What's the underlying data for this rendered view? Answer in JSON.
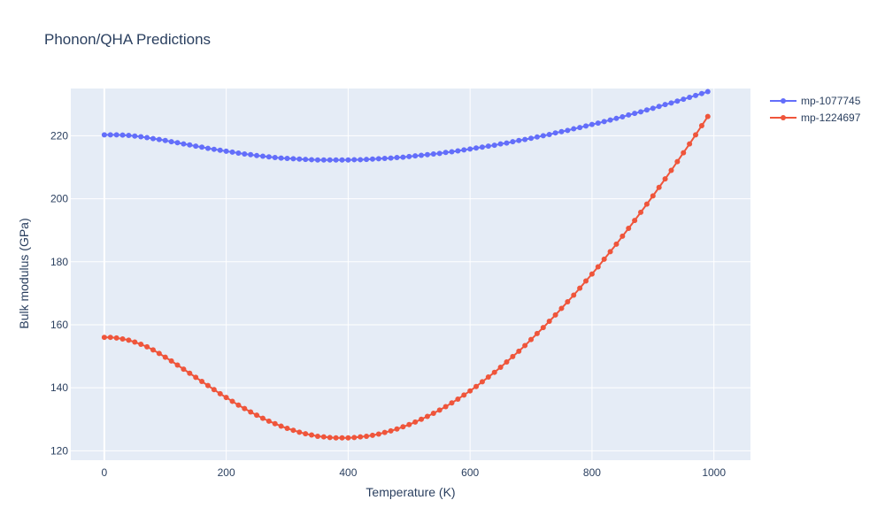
{
  "chart_data": {
    "type": "line",
    "title": "Phonon/QHA Predictions",
    "xlabel": "Temperature (K)",
    "ylabel": "Bulk modulus (GPa)",
    "xlim": [
      -55,
      1060
    ],
    "ylim": [
      117,
      235
    ],
    "xticks": [
      0,
      200,
      400,
      600,
      800,
      1000
    ],
    "yticks": [
      120,
      140,
      160,
      180,
      200,
      220
    ],
    "grid": true,
    "legend_position": "top-right",
    "markers": true,
    "series": [
      {
        "name": "mp-1077745",
        "color": "#636efa",
        "x": [
          0,
          10,
          20,
          30,
          40,
          50,
          60,
          70,
          80,
          90,
          100,
          110,
          120,
          130,
          140,
          150,
          160,
          170,
          180,
          190,
          200,
          210,
          220,
          230,
          240,
          250,
          260,
          270,
          280,
          290,
          300,
          310,
          320,
          330,
          340,
          350,
          360,
          370,
          380,
          390,
          400,
          410,
          420,
          430,
          440,
          450,
          460,
          470,
          480,
          490,
          500,
          510,
          520,
          530,
          540,
          550,
          560,
          570,
          580,
          590,
          600,
          610,
          620,
          630,
          640,
          650,
          660,
          670,
          680,
          690,
          700,
          710,
          720,
          730,
          740,
          750,
          760,
          770,
          780,
          790,
          800,
          810,
          820,
          830,
          840,
          850,
          860,
          870,
          880,
          890,
          900,
          910,
          920,
          930,
          940,
          950,
          960,
          970,
          980,
          990
        ],
        "y": [
          220.3,
          220.3,
          220.3,
          220.2,
          220.1,
          219.9,
          219.7,
          219.4,
          219.1,
          218.8,
          218.5,
          218.1,
          217.8,
          217.4,
          217.1,
          216.7,
          216.4,
          216.0,
          215.7,
          215.4,
          215.1,
          214.8,
          214.5,
          214.2,
          214.0,
          213.7,
          213.5,
          213.3,
          213.1,
          212.9,
          212.8,
          212.7,
          212.6,
          212.5,
          212.4,
          212.3,
          212.3,
          212.3,
          212.3,
          212.3,
          212.3,
          212.4,
          212.4,
          212.5,
          212.6,
          212.7,
          212.8,
          212.9,
          213.1,
          213.2,
          213.4,
          213.6,
          213.8,
          214.0,
          214.2,
          214.4,
          214.7,
          214.9,
          215.2,
          215.5,
          215.8,
          216.1,
          216.4,
          216.7,
          217.0,
          217.4,
          217.7,
          218.1,
          218.5,
          218.8,
          219.2,
          219.6,
          220.0,
          220.4,
          220.9,
          221.3,
          221.7,
          222.2,
          222.6,
          223.1,
          223.6,
          224.0,
          224.5,
          225.0,
          225.5,
          226.0,
          226.6,
          227.1,
          227.6,
          228.2,
          228.7,
          229.3,
          229.9,
          230.4,
          231.0,
          231.6,
          232.2,
          232.8,
          233.4,
          234.0
        ]
      },
      {
        "name": "mp-1224697",
        "color": "#ef553b",
        "x": [
          0,
          10,
          20,
          30,
          40,
          50,
          60,
          70,
          80,
          90,
          100,
          110,
          120,
          130,
          140,
          150,
          160,
          170,
          180,
          190,
          200,
          210,
          220,
          230,
          240,
          250,
          260,
          270,
          280,
          290,
          300,
          310,
          320,
          330,
          340,
          350,
          360,
          370,
          380,
          390,
          400,
          410,
          420,
          430,
          440,
          450,
          460,
          470,
          480,
          490,
          500,
          510,
          520,
          530,
          540,
          550,
          560,
          570,
          580,
          590,
          600,
          610,
          620,
          630,
          640,
          650,
          660,
          670,
          680,
          690,
          700,
          710,
          720,
          730,
          740,
          750,
          760,
          770,
          780,
          790,
          800,
          810,
          820,
          830,
          840,
          850,
          860,
          870,
          880,
          890,
          900,
          910,
          920,
          930,
          940,
          950,
          960,
          970,
          980,
          990
        ],
        "y": [
          156.0,
          156.0,
          155.8,
          155.5,
          155.1,
          154.5,
          153.8,
          153.0,
          152.0,
          150.9,
          149.7,
          148.5,
          147.2,
          145.9,
          144.6,
          143.3,
          142.0,
          140.7,
          139.4,
          138.1,
          136.9,
          135.7,
          134.5,
          133.4,
          132.3,
          131.3,
          130.3,
          129.4,
          128.6,
          127.8,
          127.1,
          126.5,
          125.9,
          125.4,
          125.0,
          124.6,
          124.4,
          124.2,
          124.1,
          124.1,
          124.1,
          124.2,
          124.4,
          124.6,
          124.9,
          125.3,
          125.8,
          126.3,
          126.9,
          127.6,
          128.3,
          129.1,
          130.0,
          130.9,
          131.9,
          132.9,
          134.0,
          135.2,
          136.4,
          137.7,
          139.0,
          140.4,
          141.9,
          143.4,
          144.9,
          146.5,
          148.2,
          149.9,
          151.6,
          153.4,
          155.3,
          157.2,
          159.1,
          161.1,
          163.1,
          165.2,
          167.3,
          169.4,
          171.6,
          173.9,
          176.1,
          178.4,
          180.8,
          183.2,
          185.6,
          188.1,
          190.6,
          193.1,
          195.7,
          198.3,
          200.9,
          203.6,
          206.3,
          209.0,
          211.8,
          214.6,
          217.4,
          220.3,
          223.2,
          226.1
        ]
      }
    ]
  }
}
